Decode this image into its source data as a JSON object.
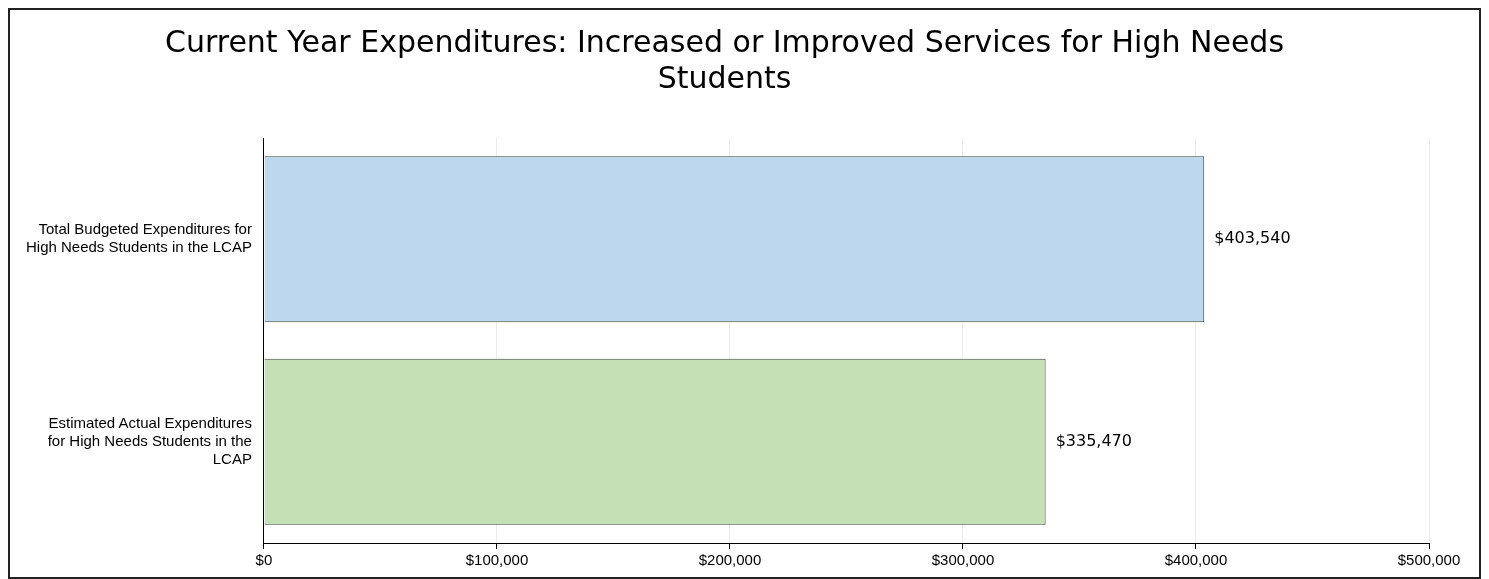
{
  "chart_data": {
    "type": "bar",
    "orientation": "horizontal",
    "title": "Current Year Expenditures: Increased or Improved Services for High Needs Students",
    "categories": [
      "Total Budgeted Expenditures for High Needs Students in the LCAP",
      "Estimated Actual Expenditures for High Needs Students in the LCAP"
    ],
    "values": [
      403540,
      335470
    ],
    "colors": [
      "#bdd7ee",
      "#c5e0b4"
    ],
    "value_labels": [
      "$403,540",
      "$335,470"
    ],
    "xlim": [
      0,
      500000
    ],
    "xticks": [
      {
        "value": 0,
        "label": "$0"
      },
      {
        "value": 100000,
        "label": "$100,000"
      },
      {
        "value": 200000,
        "label": "$200,000"
      },
      {
        "value": 300000,
        "label": "$300,000"
      },
      {
        "value": 400000,
        "label": "$400,000"
      },
      {
        "value": 500000,
        "label": "$500,000"
      }
    ],
    "grid": "x",
    "legend": false
  }
}
